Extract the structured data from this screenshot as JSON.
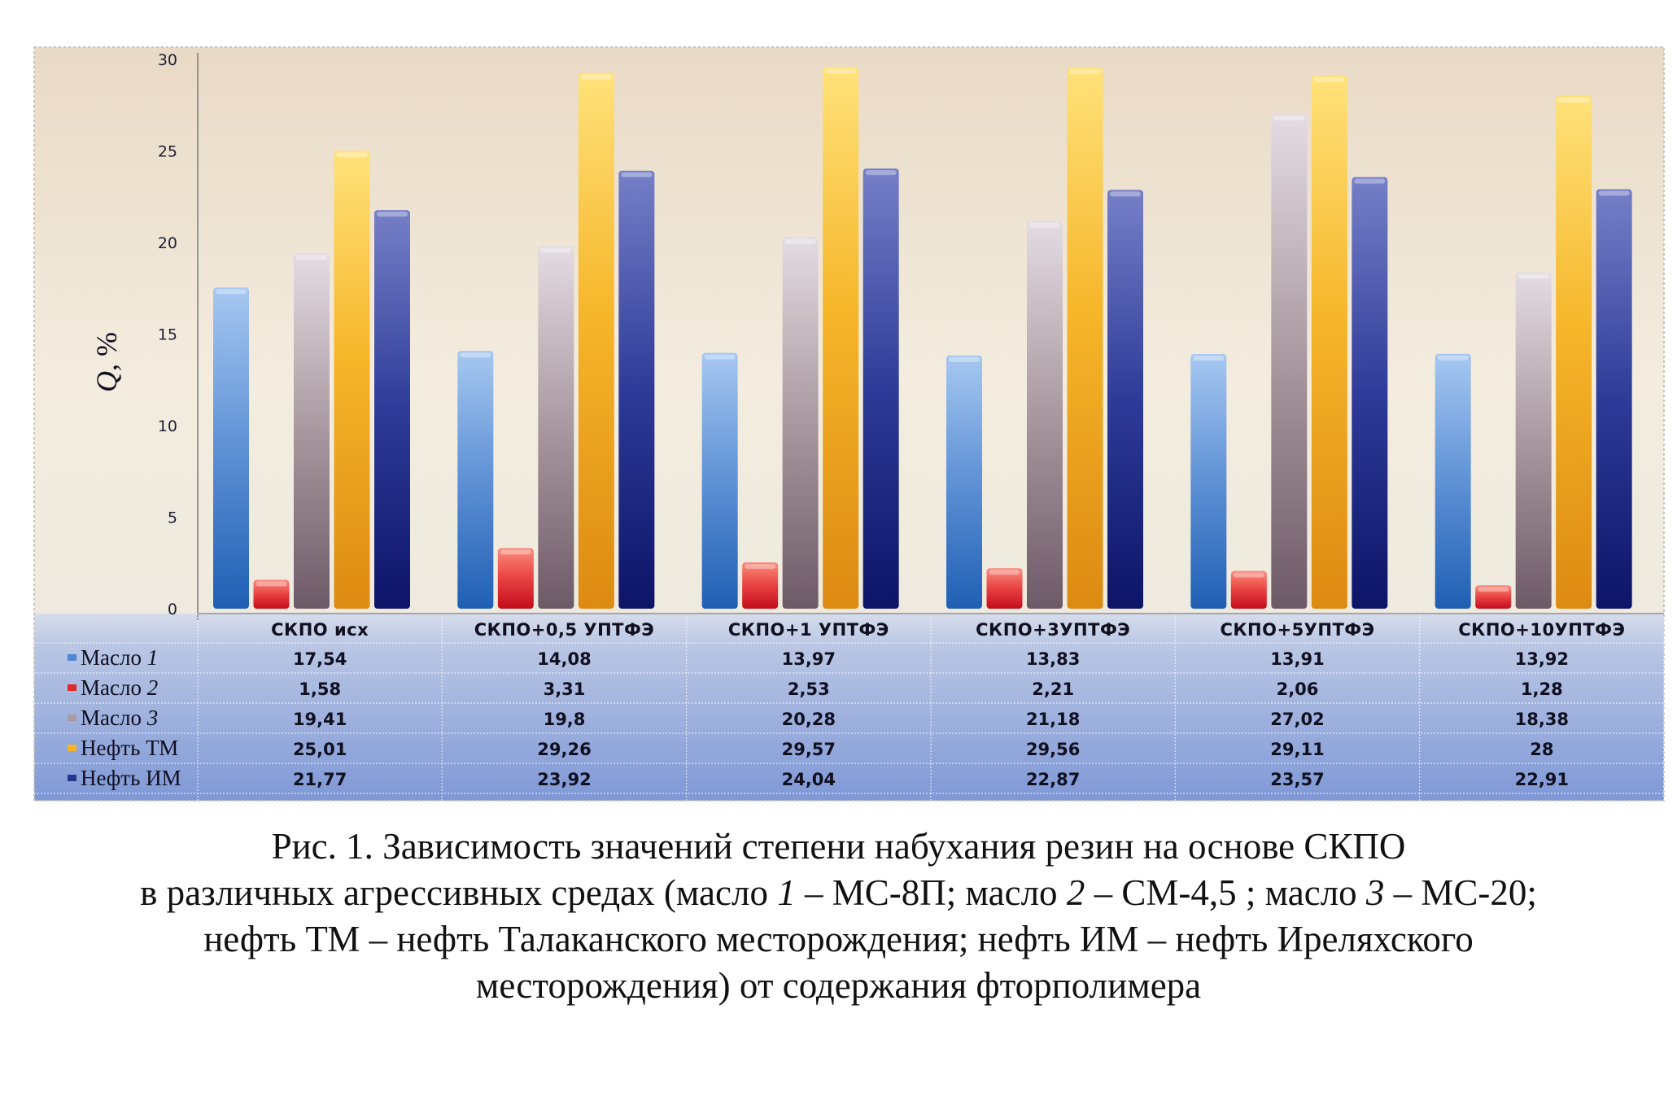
{
  "chart_data": {
    "type": "bar",
    "ylabel_main": "Q",
    "ylabel_unit": ", %",
    "ylim": [
      0,
      30
    ],
    "yticks": [
      "0",
      "5",
      "10",
      "15",
      "20",
      "25",
      "30"
    ],
    "categories": [
      "СКПО исх",
      "СКПО+0,5 УПТФЭ",
      "СКПО+1 УПТФЭ",
      "СКПО+3УПТФЭ",
      "СКПО+5УПТФЭ",
      "СКПО+10УПТФЭ"
    ],
    "series": [
      {
        "name": "Масло 1",
        "name_plain": "Масло ",
        "name_italic": "1",
        "color": "#4f86d3",
        "values": [
          17.54,
          14.08,
          13.97,
          13.83,
          13.91,
          13.92
        ],
        "labels": [
          "17,54",
          "14,08",
          "13,97",
          "13,83",
          "13,91",
          "13,92"
        ]
      },
      {
        "name": "Масло 2",
        "name_plain": "Масло ",
        "name_italic": "2",
        "color": "#e02a2a",
        "values": [
          1.58,
          3.31,
          2.53,
          2.21,
          2.06,
          1.28
        ],
        "labels": [
          "1,58",
          "3,31",
          "2,53",
          "2,21",
          "2,06",
          "1,28"
        ]
      },
      {
        "name": "Масло 3",
        "name_plain": "Масло ",
        "name_italic": "3",
        "color": "#a89aa4",
        "values": [
          19.41,
          19.8,
          20.28,
          21.18,
          27.02,
          18.38
        ],
        "labels": [
          "19,41",
          "19,8",
          "20,28",
          "21,18",
          "27,02",
          "18,38"
        ]
      },
      {
        "name": "Нефть ТМ",
        "name_plain": "Нефть ТМ",
        "name_italic": "",
        "color": "#f4b423",
        "values": [
          25.01,
          29.26,
          29.57,
          29.56,
          29.11,
          28
        ],
        "labels": [
          "25,01",
          "29,26",
          "29,57",
          "29,56",
          "29,11",
          "28"
        ]
      },
      {
        "name": "Нефть ИМ",
        "name_plain": "Нефть ИМ",
        "name_italic": "",
        "color": "#2a3590",
        "values": [
          21.77,
          23.92,
          24.04,
          22.87,
          23.57,
          22.91
        ],
        "labels": [
          "21,77",
          "23,92",
          "24,04",
          "22,87",
          "23,57",
          "22,91"
        ]
      }
    ],
    "grid": false,
    "legend": "table-left"
  },
  "caption": {
    "line1": "Рис. 1. Зависимость значений степени набухания резин на основе СКПО",
    "line2_a": "в различных агрессивных средах (масло ",
    "line2_b": "1",
    "line2_c": " – МС-8П; масло ",
    "line2_d": "2",
    "line2_e": " – СМ-4,5 ; масло ",
    "line2_f": "3",
    "line2_g": " – МС-20;",
    "line3": "нефть ТМ – нефть Талаканского месторождения; нефть ИМ – нефть Иреляхского",
    "line4": "месторождения) от содержания фторполимера"
  }
}
